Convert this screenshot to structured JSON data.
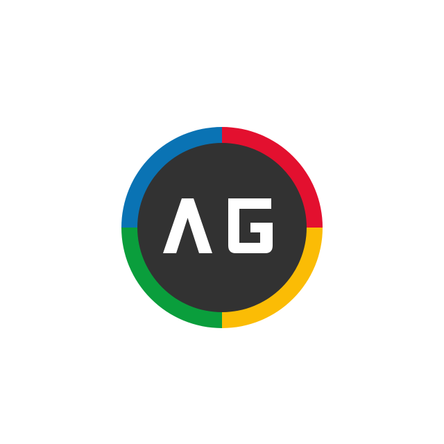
{
  "logo": {
    "monogram": "AG",
    "colors": {
      "background": "#ffffff",
      "inner_disc": "#323232",
      "letters": "#ffffff",
      "ring_top_left": "#0a73b4",
      "ring_top_right": "#e3102f",
      "ring_bottom_right": "#fbbc05",
      "ring_bottom_left": "#0a9e3c"
    }
  }
}
